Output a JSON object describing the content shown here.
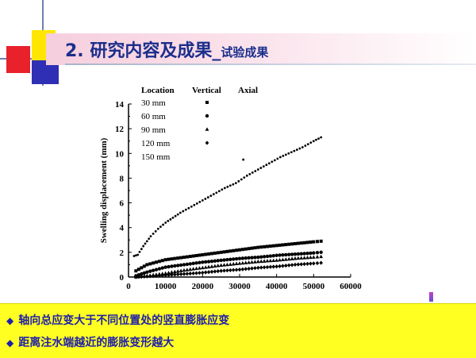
{
  "title": {
    "main": "2. 研究内容及成果_",
    "sub": "试验成果"
  },
  "chart_data": {
    "type": "scatter",
    "xlabel": "",
    "ylabel": "Swelling displacement (mm)",
    "xlim": [
      0,
      60000
    ],
    "ylim": [
      0,
      14
    ],
    "xticks": [
      "0",
      "10000",
      "20000",
      "30000",
      "40000",
      "50000",
      "60000"
    ],
    "yticks": [
      "0",
      "2",
      "4",
      "6",
      "8",
      "10",
      "12",
      "14"
    ],
    "legend": {
      "placement": "top-left",
      "headers": [
        "Location",
        "Vertical",
        "Axial"
      ],
      "entries": [
        "30   mm",
        "60   mm",
        "90   mm",
        "120 mm",
        "150 mm"
      ]
    },
    "series": [
      {
        "name": "30   mm",
        "marker": "square",
        "x": [
          2000,
          5000,
          10000,
          15000,
          20000,
          25000,
          30000,
          35000,
          40000,
          45000,
          50000,
          52000
        ],
        "y": [
          0.5,
          1.0,
          1.4,
          1.6,
          1.8,
          2.0,
          2.2,
          2.4,
          2.55,
          2.7,
          2.85,
          2.9
        ]
      },
      {
        "name": "60   mm",
        "marker": "circle",
        "x": [
          2000,
          5000,
          10000,
          15000,
          20000,
          25000,
          30000,
          35000,
          40000,
          45000,
          50000,
          52000
        ],
        "y": [
          0.1,
          0.4,
          0.8,
          1.0,
          1.2,
          1.35,
          1.5,
          1.6,
          1.75,
          1.85,
          1.95,
          2.0
        ]
      },
      {
        "name": "90   mm",
        "marker": "triangle",
        "x": [
          2000,
          5000,
          10000,
          15000,
          20000,
          25000,
          30000,
          35000,
          40000,
          45000,
          50000,
          52000
        ],
        "y": [
          0.0,
          0.1,
          0.3,
          0.55,
          0.75,
          0.95,
          1.1,
          1.25,
          1.35,
          1.5,
          1.6,
          1.65
        ]
      },
      {
        "name": "120 mm",
        "marker": "diamond",
        "x": [
          2000,
          5000,
          10000,
          15000,
          20000,
          25000,
          30000,
          35000,
          40000,
          45000,
          50000,
          52000
        ],
        "y": [
          0.0,
          0.05,
          0.15,
          0.25,
          0.35,
          0.5,
          0.6,
          0.75,
          0.85,
          1.0,
          1.1,
          1.15
        ]
      },
      {
        "name": "150 mm",
        "marker": "dot",
        "x": [
          1500,
          2500,
          4000,
          6000,
          8000,
          10000,
          12000,
          14000,
          17000,
          20000,
          23000,
          26000,
          29000,
          32000,
          35000,
          38000,
          41000,
          44000,
          47000,
          50000,
          52000
        ],
        "y": [
          1.7,
          1.8,
          2.5,
          3.3,
          3.9,
          4.4,
          4.8,
          5.2,
          5.7,
          6.2,
          6.7,
          7.2,
          7.6,
          8.2,
          8.7,
          9.2,
          9.7,
          10.1,
          10.5,
          11.0,
          11.3
        ]
      }
    ],
    "outliers": [
      {
        "series": "150 mm",
        "x": 31000,
        "y": 9.5
      }
    ]
  },
  "callout": {
    "diamond": "◆",
    "bullet_1": "轴向总应变大于不同位置处的竖直膨胀应变",
    "bullet_2": "距离注水端越近的膨胀变形越大"
  }
}
